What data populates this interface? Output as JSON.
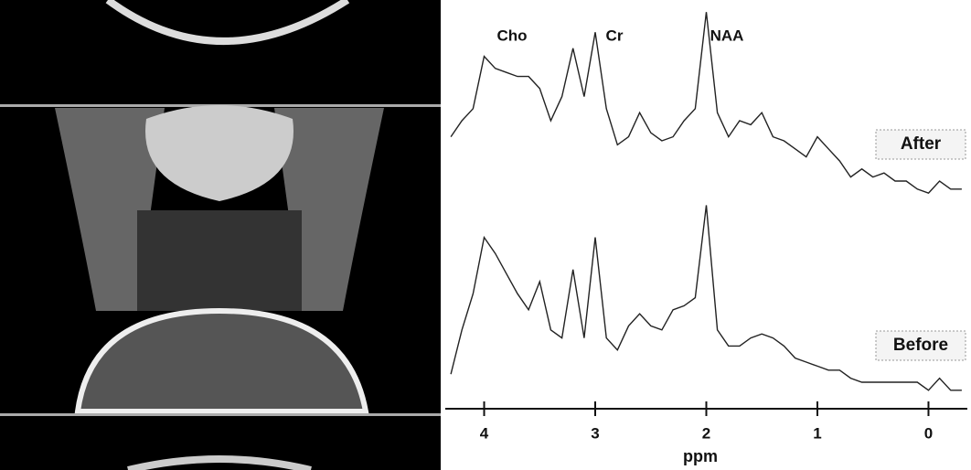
{
  "chart_data": {
    "type": "line",
    "annotations": [
      "Cho",
      "Cr",
      "NAA"
    ],
    "x_label": "ppm",
    "x": [
      4.3,
      4.2,
      4.1,
      4.0,
      3.9,
      3.8,
      3.7,
      3.6,
      3.5,
      3.4,
      3.3,
      3.2,
      3.1,
      3.0,
      2.9,
      2.8,
      2.7,
      2.6,
      2.5,
      2.4,
      2.3,
      2.2,
      2.1,
      2.0,
      1.9,
      1.8,
      1.7,
      1.6,
      1.5,
      1.4,
      1.3,
      1.2,
      1.1,
      1.0,
      0.9,
      0.8,
      0.7,
      0.6,
      0.5,
      0.4,
      0.3,
      0.2,
      0.1,
      0.0,
      -0.1,
      -0.2,
      -0.3
    ],
    "series": [
      {
        "name": "After",
        "color": "#222222",
        "values": [
          66,
          70,
          73,
          86,
          83,
          82,
          81,
          81,
          78,
          70,
          76,
          88,
          76,
          92,
          73,
          64,
          66,
          72,
          67,
          65,
          66,
          70,
          73,
          97,
          72,
          66,
          70,
          69,
          72,
          66,
          65,
          63,
          61,
          66,
          63,
          60,
          56,
          58,
          56,
          57,
          55,
          55,
          53,
          52,
          55,
          53,
          53
        ]
      },
      {
        "name": "Before",
        "color": "#222222",
        "values": [
          7,
          18,
          27,
          41,
          37,
          32,
          27,
          23,
          30,
          18,
          16,
          33,
          16,
          41,
          16,
          13,
          19,
          22,
          19,
          18,
          23,
          24,
          26,
          49,
          18,
          14,
          14,
          16,
          17,
          16,
          14,
          11,
          10,
          9,
          8,
          8,
          6,
          5,
          5,
          5,
          5,
          5,
          5,
          3,
          6,
          3,
          3
        ]
      }
    ],
    "xlim": [
      4.35,
      -0.35
    ],
    "xticks": [
      4,
      3,
      2,
      1,
      0
    ],
    "ylim": [
      0,
      100
    ]
  }
}
